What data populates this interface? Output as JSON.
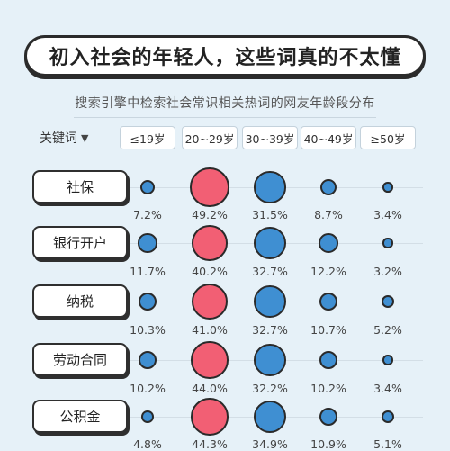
{
  "title": "初入社会的年轻人，这些词真的不太懂",
  "subtitle": "搜索引擎中检索社会常识相关热词的网友年龄段分布",
  "key_label": "关键词",
  "caret": "▼",
  "colors": {
    "highlight": "#f25f74",
    "normal": "#3f8fd2",
    "background": "#e6f1f8"
  },
  "chart_data": {
    "type": "bubble-matrix",
    "title": "初入社会的年轻人，这些词真的不太懂",
    "subtitle": "搜索引擎中检索社会常识相关热词的网友年龄段分布",
    "categories": [
      "≤19岁",
      "20~29岁",
      "30~39岁",
      "40~49岁",
      "≥50岁"
    ],
    "rows": [
      {
        "label": "社保",
        "values": [
          7.2,
          49.2,
          31.5,
          8.7,
          3.4
        ],
        "labels": [
          "7.2%",
          "49.2%",
          "31.5%",
          "8.7%",
          "3.4%"
        ]
      },
      {
        "label": "银行开户",
        "values": [
          11.7,
          40.2,
          32.7,
          12.2,
          3.2
        ],
        "labels": [
          "11.7%",
          "40.2%",
          "32.7%",
          "12.2%",
          "3.2%"
        ]
      },
      {
        "label": "纳税",
        "values": [
          10.3,
          41.0,
          32.7,
          10.7,
          5.2
        ],
        "labels": [
          "10.3%",
          "41.0%",
          "32.7%",
          "10.7%",
          "5.2%"
        ]
      },
      {
        "label": "劳动合同",
        "values": [
          10.2,
          44.0,
          32.2,
          10.2,
          3.4
        ],
        "labels": [
          "10.2%",
          "44.0%",
          "32.2%",
          "10.2%",
          "3.4%"
        ]
      },
      {
        "label": "公积金",
        "values": [
          4.8,
          44.3,
          34.9,
          10.9,
          5.1
        ],
        "labels": [
          "4.8%",
          "44.3%",
          "34.9%",
          "10.9%",
          "5.1%"
        ]
      }
    ],
    "highlight_column": 1
  }
}
